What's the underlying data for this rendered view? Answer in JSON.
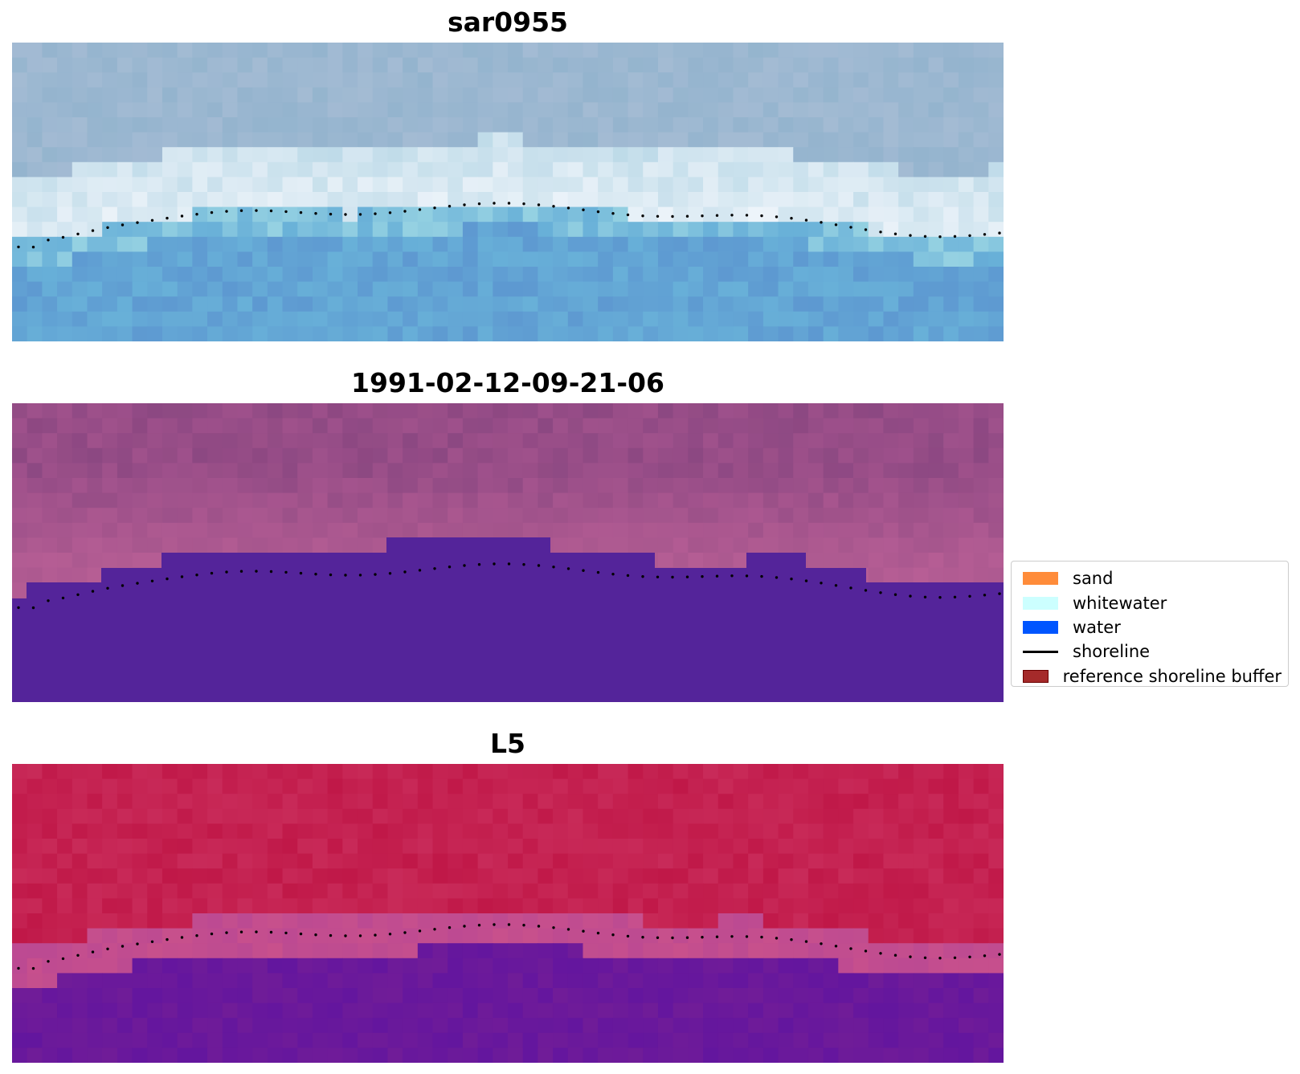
{
  "panels": [
    {
      "title": "sar0955",
      "style": "rgb"
    },
    {
      "title": "1991-02-12-09-21-06",
      "style": "classified"
    },
    {
      "title": "L5",
      "style": "index"
    }
  ],
  "legend": {
    "items": [
      {
        "label": "sand",
        "kind": "patch",
        "color": "#ff8c3a"
      },
      {
        "label": "whitewater",
        "kind": "patch",
        "color": "#ccffff"
      },
      {
        "label": "water",
        "kind": "patch",
        "color": "#0055ff"
      },
      {
        "label": "shoreline",
        "kind": "line",
        "color": "#000000"
      },
      {
        "label": "reference shoreline buffer",
        "kind": "patch",
        "color": "#a52a2a"
      }
    ]
  },
  "colors": {
    "classified_water": "#54249a",
    "shoreline": "#000000"
  }
}
